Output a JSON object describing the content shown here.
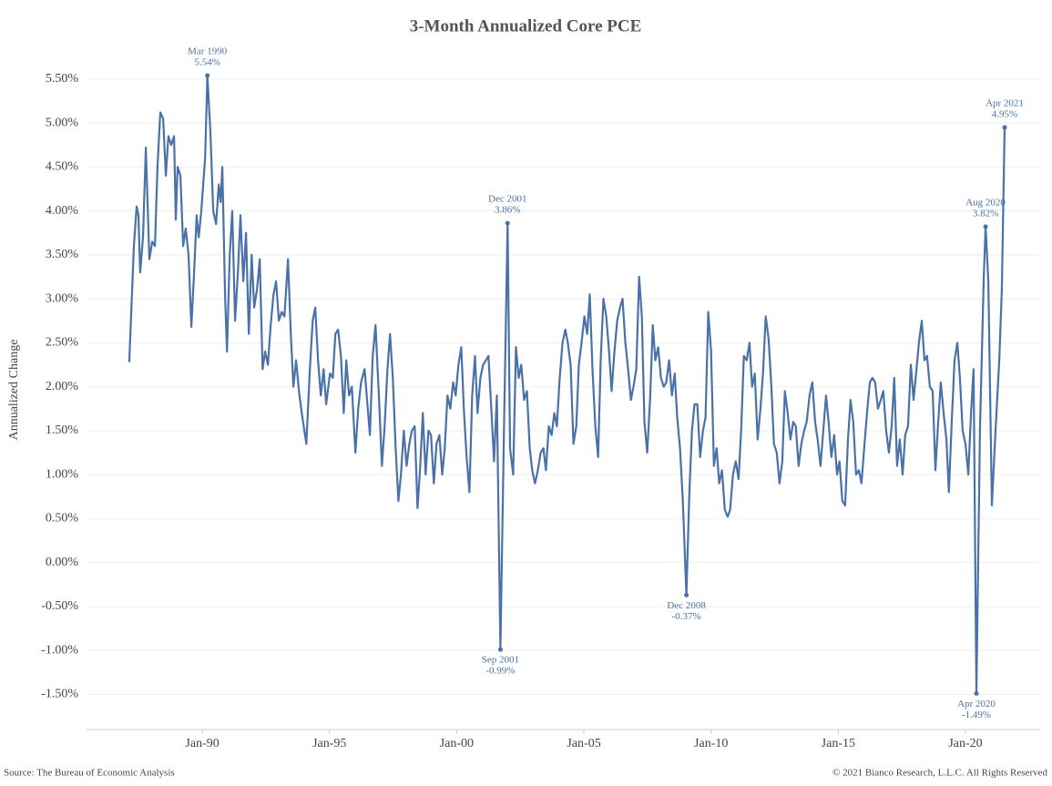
{
  "chart_data": {
    "type": "line",
    "title": "3-Month Annualized Core PCE",
    "ylabel": "Annualized Change",
    "source": "Source: The Bureau of Economic Analysis",
    "copyright": "© 2021 Bianco Research, L.L.C. All Rights Reserved",
    "grid": true,
    "xlim": [
      1985.45,
      2022.9
    ],
    "ylim": [
      -1.9,
      5.85
    ],
    "xticks": [
      {
        "value": 1990,
        "label": "Jan-90"
      },
      {
        "value": 1995,
        "label": "Jan-95"
      },
      {
        "value": 2000,
        "label": "Jan-00"
      },
      {
        "value": 2005,
        "label": "Jan-05"
      },
      {
        "value": 2010,
        "label": "Jan-10"
      },
      {
        "value": 2015,
        "label": "Jan-15"
      },
      {
        "value": 2020,
        "label": "Jan-20"
      }
    ],
    "yticks": [
      {
        "value": -1.5,
        "label": "-1.50%"
      },
      {
        "value": -1,
        "label": "-1.00%"
      },
      {
        "value": -0.5,
        "label": "-0.50%"
      },
      {
        "value": 0,
        "label": "0.00%"
      },
      {
        "value": 0.5,
        "label": "0.50%"
      },
      {
        "value": 1,
        "label": "1.00%"
      },
      {
        "value": 1.5,
        "label": "1.50%"
      },
      {
        "value": 2,
        "label": "2.00%"
      },
      {
        "value": 2.5,
        "label": "2.50%"
      },
      {
        "value": 3,
        "label": "3.00%"
      },
      {
        "value": 3.5,
        "label": "3.50%"
      },
      {
        "value": 4,
        "label": "4.00%"
      },
      {
        "value": 4.5,
        "label": "4.50%"
      },
      {
        "value": 5,
        "label": "5.00%"
      },
      {
        "value": 5.5,
        "label": "5.50%"
      }
    ],
    "x": [
      1987.13,
      1987.31,
      1987.42,
      1987.49,
      1987.56,
      1987.67,
      1987.78,
      1987.92,
      1988.03,
      1988.14,
      1988.24,
      1988.35,
      1988.46,
      1988.57,
      1988.67,
      1988.78,
      1988.89,
      1988.96,
      1989.03,
      1989.14,
      1989.25,
      1989.35,
      1989.46,
      1989.57,
      1989.68,
      1989.78,
      1989.86,
      1989.96,
      1990.11,
      1990.2,
      1990.32,
      1990.43,
      1990.54,
      1990.65,
      1990.72,
      1990.79,
      1990.9,
      1990.97,
      1991.08,
      1991.18,
      1991.29,
      1991.4,
      1991.5,
      1991.61,
      1991.72,
      1991.83,
      1991.94,
      1992.04,
      1992.15,
      1992.26,
      1992.37,
      1992.47,
      1992.58,
      1992.69,
      1992.8,
      1992.9,
      1993.01,
      1993.12,
      1993.23,
      1993.37,
      1993.48,
      1993.58,
      1993.69,
      1993.8,
      1993.91,
      1994.09,
      1994.23,
      1994.34,
      1994.44,
      1994.55,
      1994.66,
      1994.77,
      1994.87,
      1995.02,
      1995.13,
      1995.23,
      1995.34,
      1995.45,
      1995.56,
      1995.66,
      1995.77,
      1995.88,
      1996.02,
      1996.13,
      1996.24,
      1996.38,
      1996.49,
      1996.59,
      1996.7,
      1996.81,
      1996.95,
      1997.06,
      1997.17,
      1997.28,
      1997.38,
      1997.49,
      1997.6,
      1997.71,
      1997.81,
      1997.92,
      1998.03,
      1998.14,
      1998.24,
      1998.35,
      1998.46,
      1998.57,
      1998.67,
      1998.78,
      1998.89,
      1998.99,
      1999.1,
      1999.21,
      1999.32,
      1999.43,
      1999.53,
      1999.64,
      1999.75,
      1999.86,
      1999.96,
      2000.07,
      2000.18,
      2000.29,
      2000.39,
      2000.5,
      2000.61,
      2000.72,
      2000.82,
      2000.93,
      2001.04,
      2001.15,
      2001.25,
      2001.36,
      2001.47,
      2001.58,
      2001.72,
      2001.86,
      2002.0,
      2002.1,
      2002.22,
      2002.33,
      2002.44,
      2002.54,
      2002.65,
      2002.76,
      2002.87,
      2002.97,
      2003.08,
      2003.19,
      2003.3,
      2003.41,
      2003.51,
      2003.62,
      2003.73,
      2003.84,
      2003.94,
      2004.05,
      2004.16,
      2004.27,
      2004.37,
      2004.48,
      2004.59,
      2004.7,
      2004.8,
      2004.91,
      2005.02,
      2005.13,
      2005.23,
      2005.34,
      2005.45,
      2005.56,
      2005.66,
      2005.77,
      2005.88,
      2005.99,
      2006.09,
      2006.2,
      2006.31,
      2006.42,
      2006.52,
      2006.63,
      2006.74,
      2006.85,
      2006.95,
      2007.06,
      2007.17,
      2007.28,
      2007.38,
      2007.49,
      2007.6,
      2007.71,
      2007.81,
      2007.92,
      2008.03,
      2008.14,
      2008.24,
      2008.35,
      2008.46,
      2008.57,
      2008.67,
      2008.78,
      2008.89,
      2009.03,
      2009.14,
      2009.25,
      2009.35,
      2009.46,
      2009.57,
      2009.68,
      2009.78,
      2009.89,
      2010.0,
      2010.11,
      2010.22,
      2010.32,
      2010.43,
      2010.54,
      2010.65,
      2010.75,
      2010.86,
      2010.97,
      2011.08,
      2011.18,
      2011.29,
      2011.4,
      2011.51,
      2011.61,
      2011.72,
      2011.83,
      2011.94,
      2012.04,
      2012.15,
      2012.26,
      2012.37,
      2012.47,
      2012.58,
      2012.69,
      2012.8,
      2012.9,
      2013.01,
      2013.12,
      2013.23,
      2013.33,
      2013.44,
      2013.55,
      2013.66,
      2013.76,
      2013.87,
      2013.98,
      2014.09,
      2014.19,
      2014.3,
      2014.41,
      2014.52,
      2014.62,
      2014.73,
      2014.84,
      2014.95,
      2015.05,
      2015.16,
      2015.27,
      2015.38,
      2015.48,
      2015.59,
      2015.7,
      2015.81,
      2015.91,
      2016.02,
      2016.13,
      2016.24,
      2016.34,
      2016.45,
      2016.56,
      2016.67,
      2016.77,
      2016.88,
      2016.99,
      2017.1,
      2017.2,
      2017.31,
      2017.42,
      2017.53,
      2017.63,
      2017.74,
      2017.85,
      2017.96,
      2018.06,
      2018.17,
      2018.28,
      2018.39,
      2018.49,
      2018.6,
      2018.71,
      2018.82,
      2018.92,
      2019.03,
      2019.14,
      2019.25,
      2019.35,
      2019.46,
      2019.57,
      2019.68,
      2019.78,
      2019.89,
      2020.0,
      2020.11,
      2020.22,
      2020.32,
      2020.43,
      2020.57,
      2020.72,
      2020.79,
      2020.9,
      2021.04,
      2021.18,
      2021.33,
      2021.43,
      2021.54
    ],
    "series": [
      {
        "name": "3-Month Annualized Core PCE",
        "color": "#4a72a8",
        "values": [
          2.28,
          3.6,
          4.05,
          3.95,
          3.3,
          3.7,
          4.72,
          3.45,
          3.65,
          3.6,
          4.5,
          5.12,
          5.05,
          4.4,
          4.85,
          4.75,
          4.85,
          3.9,
          4.5,
          4.4,
          3.6,
          3.8,
          3.5,
          2.68,
          3.3,
          3.95,
          3.7,
          4.0,
          4.6,
          5.54,
          4.9,
          4.0,
          3.85,
          4.3,
          4.1,
          4.5,
          3.0,
          2.4,
          3.5,
          4.0,
          2.75,
          3.3,
          3.95,
          3.2,
          3.75,
          2.6,
          3.5,
          2.9,
          3.1,
          3.45,
          2.2,
          2.4,
          2.25,
          2.7,
          3.05,
          3.2,
          2.75,
          2.85,
          2.8,
          3.45,
          2.6,
          2.0,
          2.3,
          1.95,
          1.7,
          1.35,
          2.2,
          2.75,
          2.9,
          2.3,
          1.9,
          2.2,
          1.8,
          2.15,
          2.1,
          2.6,
          2.65,
          2.35,
          1.7,
          2.3,
          1.9,
          2.0,
          1.25,
          1.75,
          2.05,
          2.2,
          1.8,
          1.45,
          2.35,
          2.7,
          1.85,
          1.1,
          1.55,
          2.2,
          2.6,
          2.1,
          1.3,
          0.7,
          1.0,
          1.5,
          1.1,
          1.35,
          1.5,
          1.55,
          0.62,
          1.1,
          1.7,
          1.0,
          1.5,
          1.45,
          0.9,
          1.35,
          1.45,
          1.0,
          1.3,
          1.9,
          1.75,
          2.05,
          1.9,
          2.25,
          2.45,
          1.7,
          1.2,
          0.8,
          1.9,
          2.35,
          1.7,
          2.1,
          2.25,
          2.3,
          2.35,
          1.75,
          1.15,
          1.9,
          -0.99,
          1.5,
          3.86,
          1.3,
          1.0,
          2.45,
          2.1,
          2.25,
          1.85,
          1.95,
          1.3,
          1.05,
          0.9,
          1.05,
          1.25,
          1.3,
          1.05,
          1.55,
          1.45,
          1.7,
          1.55,
          2.1,
          2.5,
          2.65,
          2.5,
          2.25,
          1.35,
          1.55,
          2.25,
          2.5,
          2.8,
          2.6,
          3.05,
          2.2,
          1.55,
          1.2,
          2.3,
          3.0,
          2.8,
          2.4,
          1.95,
          2.4,
          2.75,
          2.9,
          3.0,
          2.5,
          2.2,
          1.85,
          2.0,
          2.2,
          3.25,
          2.8,
          1.6,
          1.25,
          1.85,
          2.7,
          2.3,
          2.45,
          2.1,
          2.0,
          2.05,
          2.3,
          1.9,
          2.15,
          1.65,
          1.3,
          0.7,
          -0.37,
          0.75,
          1.5,
          1.8,
          1.8,
          1.2,
          1.5,
          1.65,
          2.85,
          2.4,
          1.1,
          1.3,
          0.9,
          1.05,
          0.6,
          0.52,
          0.6,
          1.0,
          1.15,
          0.95,
          1.5,
          2.35,
          2.3,
          2.5,
          2.0,
          2.15,
          1.4,
          1.75,
          2.15,
          2.8,
          2.55,
          2.0,
          1.35,
          1.25,
          0.9,
          1.15,
          1.95,
          1.7,
          1.4,
          1.6,
          1.55,
          1.1,
          1.35,
          1.5,
          1.6,
          1.9,
          2.05,
          1.6,
          1.4,
          1.1,
          1.5,
          1.9,
          1.6,
          1.2,
          1.45,
          1.0,
          1.15,
          0.7,
          0.65,
          1.4,
          1.85,
          1.6,
          1.0,
          1.05,
          0.9,
          1.3,
          1.7,
          2.05,
          2.1,
          2.05,
          1.75,
          1.85,
          1.95,
          1.5,
          1.25,
          1.55,
          2.1,
          1.1,
          1.4,
          1.0,
          1.45,
          1.55,
          2.25,
          1.85,
          2.15,
          2.5,
          2.75,
          2.3,
          2.35,
          2.0,
          1.95,
          1.05,
          1.55,
          2.05,
          1.7,
          1.4,
          0.8,
          1.6,
          2.3,
          2.5,
          2.1,
          1.5,
          1.35,
          1.0,
          1.7,
          2.2,
          -1.49,
          1.5,
          3.25,
          3.82,
          3.2,
          0.65,
          1.5,
          2.3,
          3.1,
          4.95
        ]
      }
    ],
    "annotations": [
      {
        "x": 1990.2,
        "y": 5.54,
        "date": "Mar 1990",
        "label": "5.54%"
      },
      {
        "x": 2001.72,
        "y": -0.99,
        "date": "Sep 2001",
        "label": "-0.99%"
      },
      {
        "x": 2002.0,
        "y": 3.86,
        "date": "Dec 2001",
        "label": "3.86%"
      },
      {
        "x": 2009.03,
        "y": -0.37,
        "date": "Dec 2008",
        "label": "-0.37%"
      },
      {
        "x": 2020.43,
        "y": -1.49,
        "date": "Apr 2020",
        "label": "-1.49%"
      },
      {
        "x": 2020.79,
        "y": 3.82,
        "date": "Aug 2020",
        "label": "3.82%"
      },
      {
        "x": 2021.54,
        "y": 4.95,
        "date": "Apr 2021",
        "label": "4.95%"
      }
    ]
  }
}
